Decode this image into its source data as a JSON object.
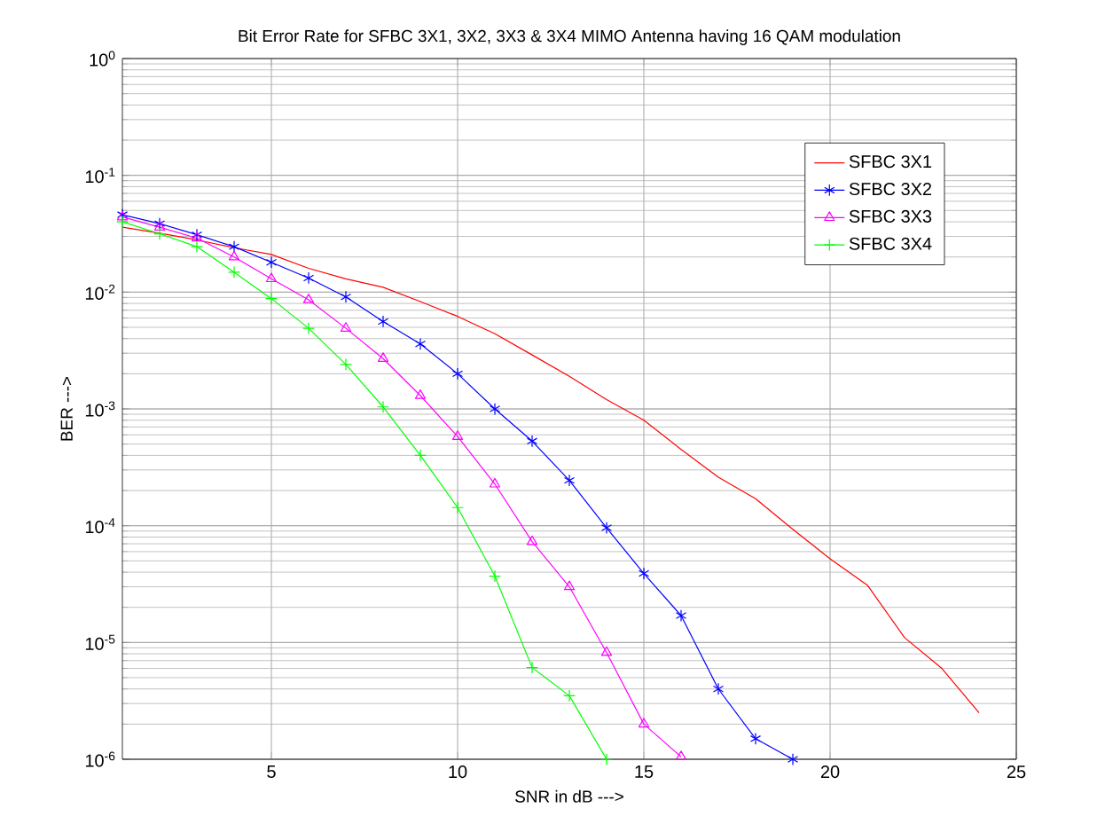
{
  "chart_data": {
    "type": "line",
    "title": "Bit Error Rate for SFBC 3X1, 3X2, 3X3 & 3X4 MIMO Antenna having 16 QAM modulation",
    "xlabel": "SNR in dB --->",
    "ylabel": "BER --->",
    "xlim": [
      1,
      25
    ],
    "xticks": [
      5,
      10,
      15,
      20,
      25
    ],
    "ylim": [
      1e-06,
      1
    ],
    "log": "y",
    "yticks": [
      {
        "value": 1e-06,
        "label": "10$^{-6}$"
      },
      {
        "value": 1e-05,
        "label": "10$^{-5}$"
      },
      {
        "value": 0.0001,
        "label": "10$^{-4}$"
      },
      {
        "value": 0.001,
        "label": "10$^{-3}$"
      },
      {
        "value": 0.01,
        "label": "10$^{-2}$"
      },
      {
        "value": 0.1,
        "label": "10$^{-1}$"
      },
      {
        "value": 1,
        "label": "10$^{0}$"
      }
    ],
    "grid": true,
    "legend": "top right",
    "series": [
      {
        "name": "SFBC 3X1",
        "color": "#ff0000",
        "marker": "none",
        "x": [
          1,
          2,
          3,
          4,
          5,
          6,
          7,
          8,
          9,
          10,
          11,
          12,
          13,
          14,
          15,
          16,
          17,
          18,
          19,
          20,
          21,
          22,
          23,
          24
        ],
        "values": [
          0.036,
          0.032,
          0.028,
          0.024,
          0.021,
          0.016,
          0.013,
          0.011,
          0.0083,
          0.0062,
          0.0044,
          0.0029,
          0.0019,
          0.0012,
          0.0008,
          0.00045,
          0.00026,
          0.00017,
          9.3e-05,
          5.2e-05,
          3.1e-05,
          1.1e-05,
          6e-06,
          2.5e-06
        ]
      },
      {
        "name": "SFBC 3X2",
        "color": "#0000ff",
        "marker": "cross",
        "x": [
          1,
          2,
          3,
          4,
          5,
          6,
          7,
          8,
          9,
          10,
          11,
          12,
          13,
          14,
          15,
          16,
          17,
          18,
          19
        ],
        "values": [
          0.046,
          0.0386,
          0.031,
          0.0245,
          0.018,
          0.0132,
          0.0091,
          0.0056,
          0.0036,
          0.002,
          0.001,
          0.00053,
          0.000244,
          9.6e-05,
          3.9e-05,
          1.7e-05,
          4e-06,
          1.5e-06,
          1e-06
        ]
      },
      {
        "name": "SFBC 3X3",
        "color": "#ff00ff",
        "marker": "triangle",
        "x": [
          1,
          2,
          3,
          4,
          5,
          6,
          7,
          8,
          9,
          10,
          11,
          12,
          13,
          14,
          15,
          16
        ],
        "values": [
          0.044,
          0.036,
          0.029,
          0.02,
          0.013,
          0.0086,
          0.0049,
          0.0027,
          0.0013,
          0.00058,
          0.000227,
          7.3e-05,
          3e-05,
          8.2e-06,
          2e-06,
          1.05e-06
        ]
      },
      {
        "name": "SFBC 3X4",
        "color": "#00ff00",
        "marker": "cross",
        "x": [
          1,
          2,
          3,
          4,
          5,
          6,
          7,
          8,
          9,
          10,
          11,
          12,
          13,
          14
        ],
        "values": [
          0.04,
          0.0316,
          0.0245,
          0.0148,
          0.0088,
          0.0049,
          0.0024,
          0.00104,
          0.0004,
          0.000143,
          3.7e-05,
          6.1e-06,
          3.5e-06,
          1e-06
        ]
      }
    ]
  }
}
